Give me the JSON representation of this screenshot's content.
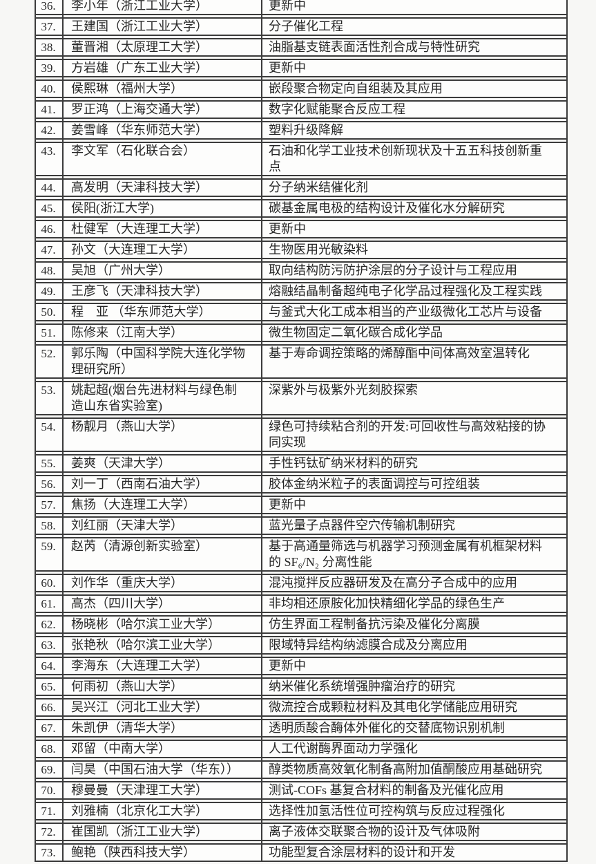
{
  "document": {
    "kind": "numbered-roster-table",
    "columns": {
      "number": "",
      "name": "",
      "topic": ""
    }
  },
  "colors": {
    "border": "#3b3b3b",
    "text": "#262626",
    "row_background": "#fdfdfc",
    "page_background": "#f7f7f5"
  },
  "table": {
    "rows": [
      {
        "no": "36.",
        "name": "李小年（浙江工业大学）",
        "topic": "更新中"
      },
      {
        "no": "37.",
        "name": "王建国（浙江工业大学）",
        "topic": "分子催化工程"
      },
      {
        "no": "38.",
        "name": "董晋湘（太原理工大学）",
        "topic": "油脂基支链表面活性剂合成与特性研究"
      },
      {
        "no": "39.",
        "name": "方岩雄（广东工业大学）",
        "topic": "更新中"
      },
      {
        "no": "40.",
        "name": "侯熙琳（福州大学）",
        "topic": "嵌段聚合物定向自组装及其应用"
      },
      {
        "no": "41.",
        "name": "罗正鸿（上海交通大学）",
        "topic": "数字化赋能聚合反应工程"
      },
      {
        "no": "42.",
        "name": "姜雪峰（华东师范大学）",
        "topic": "塑料升级降解"
      },
      {
        "no": "43.",
        "name": "李文军（石化联合会）",
        "topic": "石油和化学工业技术创新现状及十五五科技创新重点"
      },
      {
        "no": "44.",
        "name": "高发明（天津科技大学）",
        "topic": "分子纳米结催化剂"
      },
      {
        "no": "45.",
        "name": "侯阳(浙江大学)",
        "topic": "碳基金属电极的结构设计及催化水分解研究"
      },
      {
        "no": "46.",
        "name": "杜健军（大连理工大学）",
        "topic": "更新中"
      },
      {
        "no": "47.",
        "name": "孙文（大连理工大学）",
        "topic": "生物医用光敏染料"
      },
      {
        "no": "48.",
        "name": "吴旭（广州大学）",
        "topic": "取向结构防污防护涂层的分子设计与工程应用"
      },
      {
        "no": "49.",
        "name": "王彦飞（天津科技大学）",
        "topic": "熔融结晶制备超纯电子化学品过程强化及工程实践"
      },
      {
        "no": "50.",
        "name": "程　亚 （华东师范大学）",
        "topic": "与釜式大化工成本相当的产业级微化工芯片与设备"
      },
      {
        "no": "51.",
        "name": "陈修来（江南大学）",
        "topic": "微生物固定二氧化碳合成化学品"
      },
      {
        "no": "52.",
        "name": "郭乐陶（中国科学院大连化学物理研究所）",
        "topic": "基于寿命调控策略的烯醇酯中间体高效室温转化"
      },
      {
        "no": "53.",
        "name": "姚起超(烟台先进材料与绿色制造山东省实验室)",
        "topic": "深紫外与极紫外光刻胶探索"
      },
      {
        "no": "54.",
        "name": "杨靓月（燕山大学）",
        "topic": "绿色可持续粘合剂的开发:可回收性与高效粘接的协同实现"
      },
      {
        "no": "55.",
        "name": "姜爽（天津大学）",
        "topic": "手性钙钛矿纳米材料的研究"
      },
      {
        "no": "56.",
        "name": "刘一丁（西南石油大学）",
        "topic": "胶体金纳米粒子的表面调控与可控组装"
      },
      {
        "no": "57.",
        "name": "焦扬（大连理工大学）",
        "topic": "更新中"
      },
      {
        "no": "58.",
        "name": "刘红丽（天津大学）",
        "topic": "蓝光量子点器件空穴传输机制研究"
      },
      {
        "no": "59.",
        "name": "赵芮（清源创新实验室）",
        "topic": "基于高通量筛选与机器学习预测金属有机框架材料的 SF₆/N₂ 分离性能"
      },
      {
        "no": "60.",
        "name": "刘作华（重庆大学）",
        "topic": "混沌搅拌反应器研发及在高分子合成中的应用"
      },
      {
        "no": "61.",
        "name": "高杰（四川大学）",
        "topic": "非均相还原胺化加快精细化学品的绿色生产"
      },
      {
        "no": "62.",
        "name": "杨晓彬（哈尔滨工业大学）",
        "topic": "仿生界面工程制备抗污染及催化分离膜"
      },
      {
        "no": "63.",
        "name": "张艳秋（哈尔滨工业大学）",
        "topic": "限域特异结构纳滤膜合成及分离应用"
      },
      {
        "no": "64.",
        "name": "李海东（大连理工大学）",
        "topic": "更新中"
      },
      {
        "no": "65.",
        "name": "何雨初（燕山大学）",
        "topic": "纳米催化系统增强肿瘤治疗的研究"
      },
      {
        "no": "66.",
        "name": "吴兴江（河北工业大学）",
        "topic": "微流控合成颗粒材料及其电化学储能应用研究"
      },
      {
        "no": "67.",
        "name": "朱凯伊（清华大学）",
        "topic": "透明质酸合酶体外催化的交替底物识别机制"
      },
      {
        "no": "68.",
        "name": "邓留（中南大学）",
        "topic": "人工代谢酶界面动力学强化"
      },
      {
        "no": "69.",
        "name": "闫昊（中国石油大学（华东））",
        "topic": "醇类物质高效氧化制备高附加值酮酸应用基础研究"
      },
      {
        "no": "70.",
        "name": "穆曼曼（天津理工大学）",
        "topic": "测试-COFs 基复合材料的制备及光催化应用"
      },
      {
        "no": "71.",
        "name": "刘雅楠（北京化工大学）",
        "topic": "选择性加氢活性位可控构筑与反应过程强化"
      },
      {
        "no": "72.",
        "name": "崔国凯（浙江工业大学）",
        "topic": "离子液体交联聚合物的设计及气体吸附"
      },
      {
        "no": "73.",
        "name": "鲍艳（陕西科技大学）",
        "topic": "功能型复合涂层材料的设计和开发"
      }
    ]
  }
}
